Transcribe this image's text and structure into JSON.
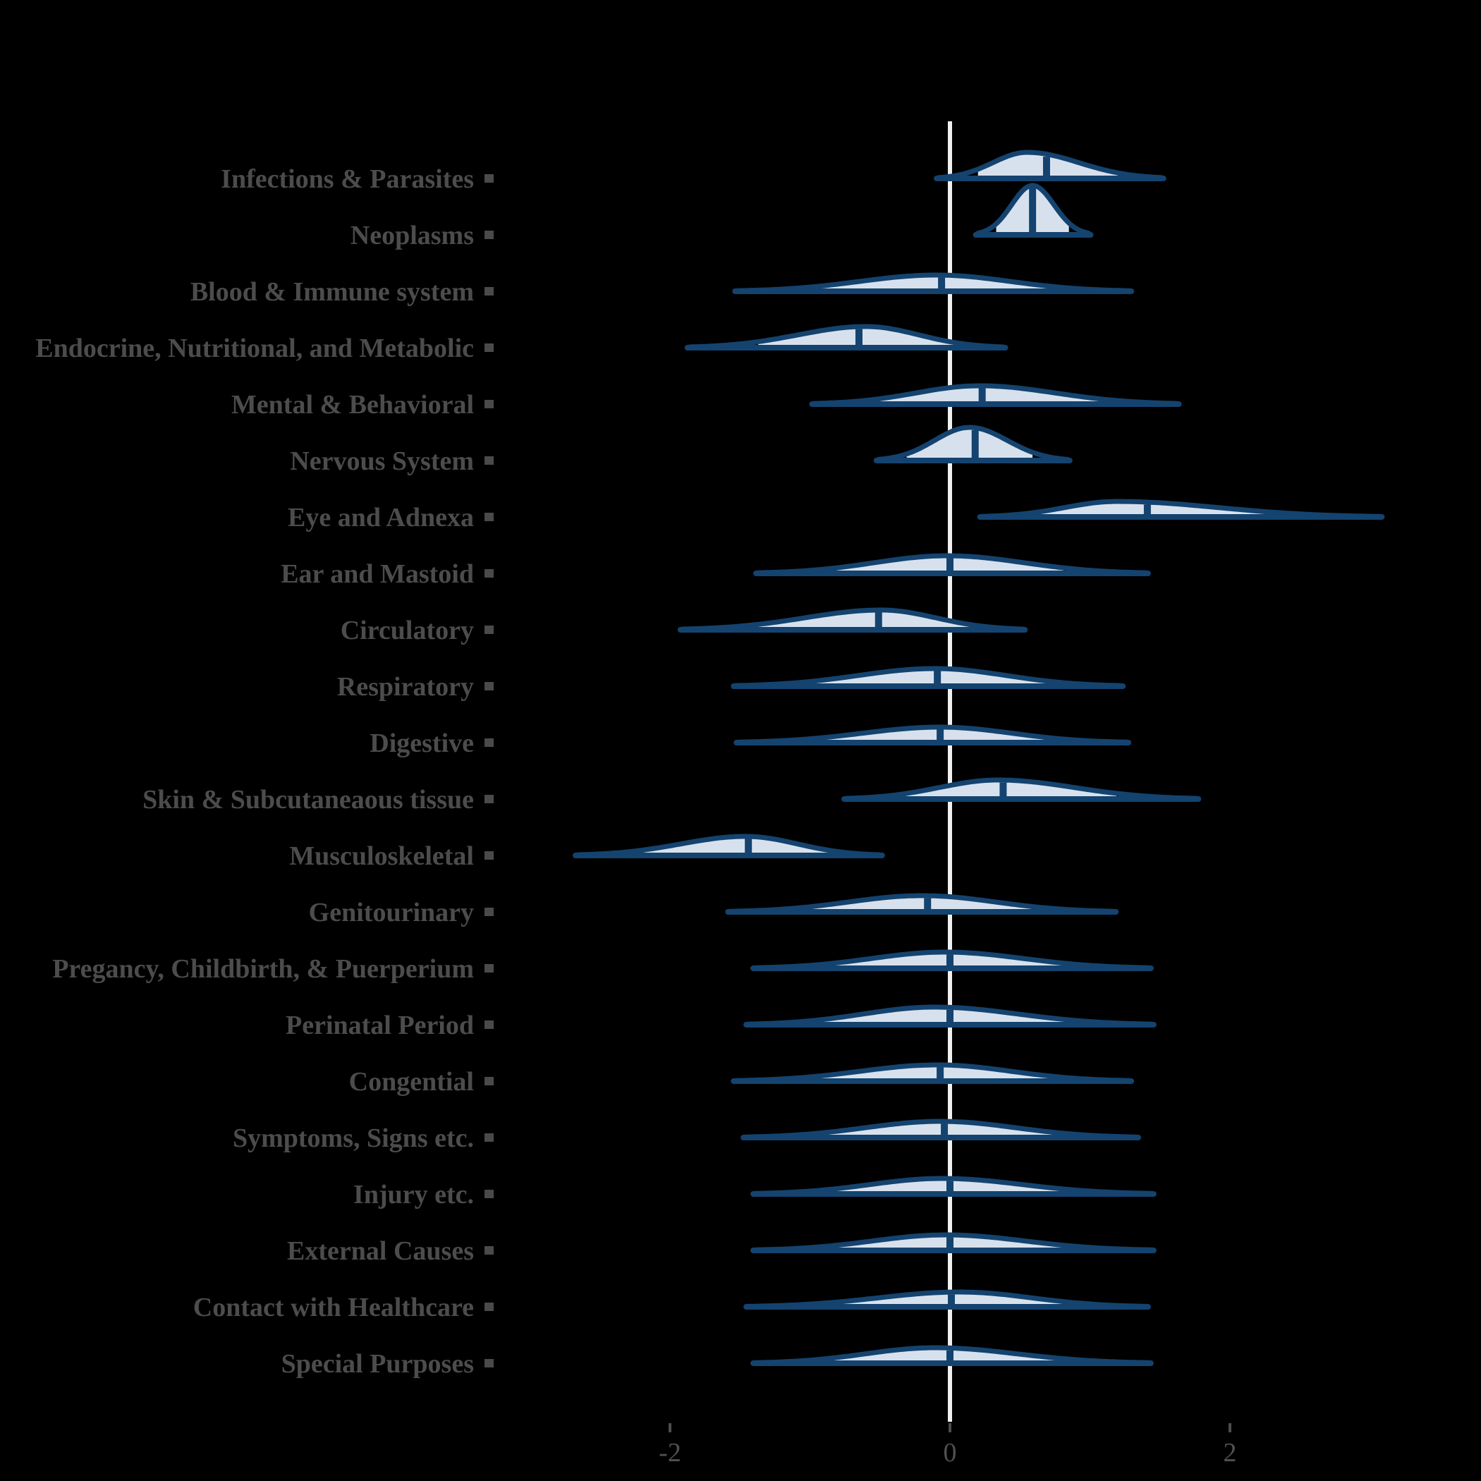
{
  "chart_data": {
    "type": "ridgeline_density",
    "title": "",
    "xlabel": "",
    "ylabel": "",
    "legend_position": "none",
    "grid": "off",
    "xlim": [
      -2.9,
      3.3
    ],
    "x_ticks": [
      {
        "value": -2,
        "label": "-2"
      },
      {
        "value": 0,
        "label": "0"
      },
      {
        "value": 2,
        "label": "2"
      }
    ],
    "zero_reference_line": 0,
    "categories": [
      "Infections & Parasites",
      "Neoplasms",
      "Blood & Immune system",
      "Endocrine, Nutritional, and Metabolic",
      "Mental & Behavioral",
      "Nervous System",
      "Eye and Adnexa",
      "Ear and Mastoid",
      "Circulatory",
      "Respiratory",
      "Digestive",
      "Skin & Subcutaneaous tissue",
      "Musculoskeletal",
      "Genitourinary",
      "Pregancy, Childbirth, & Puerperium",
      "Perinatal Period",
      "Congential",
      "Symptoms, Signs etc.",
      "Injury etc.",
      "External Causes",
      "Contact with Healthcare",
      "Special Purposes"
    ],
    "rows": [
      {
        "label": "Infections & Parasites",
        "lo": -0.08,
        "fill_lo": 0.2,
        "peak": 0.55,
        "median": 0.69,
        "fill_hi": 1.2,
        "hi": 1.51,
        "amp": 37
      },
      {
        "label": "Neoplasms",
        "lo": 0.2,
        "fill_lo": 0.33,
        "peak": 0.59,
        "median": 0.59,
        "fill_hi": 0.85,
        "hi": 0.99,
        "amp": 70
      },
      {
        "label": "Blood & Immune system",
        "lo": -1.52,
        "fill_lo": -0.94,
        "peak": -0.1,
        "median": -0.06,
        "fill_hi": 0.81,
        "hi": 1.28,
        "amp": 23
      },
      {
        "label": "Endocrine, Nutritional, and Metabolic",
        "lo": -1.86,
        "fill_lo": -1.37,
        "peak": -0.6,
        "median": -0.65,
        "fill_hi": 0.05,
        "hi": 0.38,
        "amp": 30
      },
      {
        "label": "Mental & Behavioral",
        "lo": -0.97,
        "fill_lo": -0.63,
        "peak": 0.21,
        "median": 0.23,
        "fill_hi": 1.06,
        "hi": 1.62,
        "amp": 26
      },
      {
        "label": "Nervous System",
        "lo": -0.51,
        "fill_lo": -0.31,
        "peak": 0.14,
        "median": 0.18,
        "fill_hi": 0.59,
        "hi": 0.84,
        "amp": 47
      },
      {
        "label": "Eye and Adnexa",
        "lo": 0.23,
        "fill_lo": 0.59,
        "peak": 1.19,
        "median": 1.41,
        "fill_hi": 2.47,
        "hi": 3.07,
        "amp": 22
      },
      {
        "label": "Ear and Mastoid",
        "lo": -1.37,
        "fill_lo": -0.81,
        "peak": -0.02,
        "median": 0.0,
        "fill_hi": 0.81,
        "hi": 1.4,
        "amp": 25
      },
      {
        "label": "Circulatory",
        "lo": -1.91,
        "fill_lo": -1.39,
        "peak": -0.49,
        "median": -0.51,
        "fill_hi": 0.29,
        "hi": 0.52,
        "amp": 28
      },
      {
        "label": "Respiratory",
        "lo": -1.53,
        "fill_lo": -1.01,
        "peak": -0.11,
        "median": -0.09,
        "fill_hi": 0.75,
        "hi": 1.22,
        "amp": 25
      },
      {
        "label": "Digestive",
        "lo": -1.51,
        "fill_lo": -0.99,
        "peak": -0.07,
        "median": -0.07,
        "fill_hi": 0.81,
        "hi": 1.26,
        "amp": 22
      },
      {
        "label": "Skin & Subcutaneaous tissue",
        "lo": -0.74,
        "fill_lo": -0.38,
        "peak": 0.34,
        "median": 0.38,
        "fill_hi": 1.19,
        "hi": 1.76,
        "amp": 27
      },
      {
        "label": "Musculoskeletal",
        "lo": -2.66,
        "fill_lo": -2.19,
        "peak": -1.46,
        "median": -1.44,
        "fill_hi": -0.81,
        "hi": -0.5,
        "amp": 27
      },
      {
        "label": "Genitourinary",
        "lo": -1.57,
        "fill_lo": -0.99,
        "peak": -0.2,
        "median": -0.16,
        "fill_hi": 0.68,
        "hi": 1.17,
        "amp": 23
      },
      {
        "label": "Pregancy, Childbirth, & Puerperium",
        "lo": -1.39,
        "fill_lo": -0.85,
        "peak": -0.04,
        "median": 0.0,
        "fill_hi": 0.88,
        "hi": 1.42,
        "amp": 23
      },
      {
        "label": "Perinatal Period",
        "lo": -1.44,
        "fill_lo": -0.92,
        "peak": -0.11,
        "median": 0.0,
        "fill_hi": 0.85,
        "hi": 1.44,
        "amp": 25
      },
      {
        "label": "Congential",
        "lo": -1.53,
        "fill_lo": -0.92,
        "peak": -0.09,
        "median": -0.07,
        "fill_hi": 0.77,
        "hi": 1.28,
        "amp": 23
      },
      {
        "label": "Symptoms, Signs etc.",
        "lo": -1.46,
        "fill_lo": -0.92,
        "peak": -0.07,
        "median": -0.04,
        "fill_hi": 0.79,
        "hi": 1.33,
        "amp": 23
      },
      {
        "label": "Injury etc.",
        "lo": -1.39,
        "fill_lo": -0.88,
        "peak": -0.06,
        "median": 0.0,
        "fill_hi": 0.86,
        "hi": 1.44,
        "amp": 22
      },
      {
        "label": "External Causes",
        "lo": -1.39,
        "fill_lo": -0.85,
        "peak": -0.03,
        "median": 0.0,
        "fill_hi": 0.86,
        "hi": 1.44,
        "amp": 22
      },
      {
        "label": "Contact with Healthcare",
        "lo": -1.44,
        "fill_lo": -0.9,
        "peak": 0.07,
        "median": 0.01,
        "fill_hi": 0.9,
        "hi": 1.4,
        "amp": 21
      },
      {
        "label": "Special Purposes",
        "lo": -1.39,
        "fill_lo": -0.88,
        "peak": -0.11,
        "median": 0.0,
        "fill_hi": 0.86,
        "hi": 1.42,
        "amp": 22
      }
    ],
    "colors": {
      "slab_stroke": "#14436f",
      "slab_fill": "#d7e1ed",
      "median_line": "#14436f",
      "zero_line": "#f0f0f0",
      "label_text": "#4c4c4c",
      "tick_square": "#4a4a4a",
      "axis_text": "#505050",
      "axis_tick": "#4d4d4d",
      "background": "#000000"
    }
  }
}
